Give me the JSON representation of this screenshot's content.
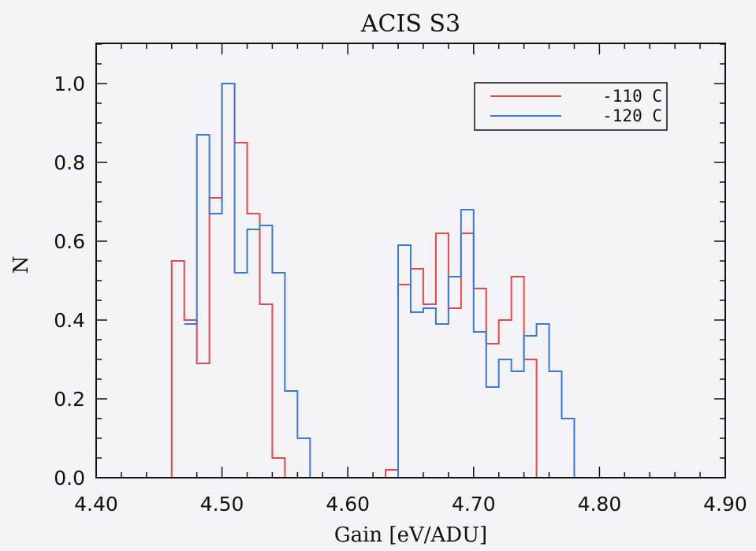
{
  "chart_data": {
    "type": "histogram-step",
    "title": "ACIS S3",
    "xlabel": "Gain [eV/ADU]",
    "ylabel": "N",
    "xlim": [
      4.4,
      4.9
    ],
    "ylim": [
      0.0,
      1.1
    ],
    "xticks": [
      "4.40",
      "4.50",
      "4.60",
      "4.70",
      "4.80",
      "4.90"
    ],
    "yticks": [
      "0.0",
      "0.2",
      "0.4",
      "0.6",
      "0.8",
      "1.0"
    ],
    "bin_width": 0.01,
    "legend_position": "top-right",
    "series": [
      {
        "name": "-110 C",
        "color": "#e24a4a",
        "bin_edges": [
          4.41,
          4.42,
          4.43,
          4.44,
          4.45,
          4.46,
          4.47,
          4.48,
          4.49,
          4.5,
          4.51,
          4.52,
          4.53,
          4.54,
          4.55,
          4.56,
          4.57,
          4.58,
          4.59,
          4.6,
          4.61,
          4.62,
          4.63,
          4.64,
          4.65,
          4.66,
          4.67,
          4.68,
          4.69,
          4.7,
          4.71,
          4.72,
          4.73,
          4.74,
          4.75,
          4.76
        ],
        "values": [
          0.0,
          0.0,
          0.0,
          0.0,
          0.0,
          0.55,
          0.4,
          0.29,
          0.71,
          1.0,
          0.85,
          0.67,
          0.44,
          0.05,
          0.0,
          0.0,
          0.0,
          0.0,
          0.0,
          0.0,
          0.0,
          0.0,
          0.02,
          0.49,
          0.53,
          0.44,
          0.62,
          0.43,
          0.62,
          0.48,
          0.34,
          0.4,
          0.51,
          0.3,
          0.0
        ]
      },
      {
        "name": "-120 C",
        "color": "#3a7ad6",
        "bin_edges": [
          4.47,
          4.48,
          4.49,
          4.5,
          4.51,
          4.52,
          4.53,
          4.54,
          4.55,
          4.56,
          4.57,
          4.58,
          4.59,
          4.6,
          4.61,
          4.62,
          4.63,
          4.64,
          4.65,
          4.66,
          4.67,
          4.68,
          4.69,
          4.7,
          4.71,
          4.72,
          4.73,
          4.74,
          4.75,
          4.76,
          4.77,
          4.78,
          4.79
        ],
        "values": [
          0.39,
          0.87,
          0.67,
          1.0,
          0.52,
          0.63,
          0.64,
          0.52,
          0.22,
          0.1,
          0.0,
          0.0,
          0.0,
          0.0,
          0.0,
          0.0,
          0.0,
          0.59,
          0.42,
          0.43,
          0.39,
          0.51,
          0.68,
          0.37,
          0.23,
          0.3,
          0.27,
          0.36,
          0.39,
          0.27,
          0.15,
          0.0
        ]
      }
    ]
  }
}
